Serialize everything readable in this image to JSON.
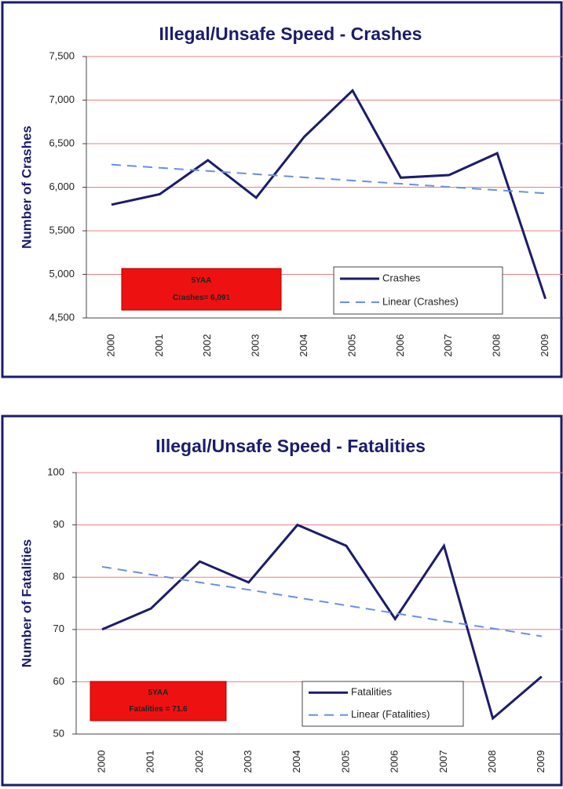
{
  "chart_data": [
    {
      "type": "line",
      "title": "Illegal/Unsafe Speed - Crashes",
      "y_label": "Number of Crashes",
      "categories": [
        "2000",
        "2001",
        "2002",
        "2003",
        "2004",
        "2005",
        "2006",
        "2007",
        "2008",
        "2009"
      ],
      "series": [
        {
          "name": "Crashes",
          "color": "#1c1c6b",
          "style": "solid",
          "values": [
            5800,
            5920,
            6310,
            5880,
            6580,
            7110,
            6110,
            6140,
            6390,
            4720
          ]
        },
        {
          "name": "Linear (Crashes)",
          "color": "#6a8fe0",
          "style": "dashed",
          "values": [
            6260,
            6223,
            6187,
            6150,
            6113,
            6077,
            6040,
            6003,
            5967,
            5930
          ]
        }
      ],
      "ylim": [
        4500,
        7500
      ],
      "yticks": [
        {
          "value": 4500,
          "label": "4,500"
        },
        {
          "value": 5000,
          "label": "5,000"
        },
        {
          "value": 5500,
          "label": "5,500"
        },
        {
          "value": 6000,
          "label": "6,000"
        },
        {
          "value": 6500,
          "label": "6,500"
        },
        {
          "value": 7000,
          "label": "7,000"
        },
        {
          "value": 7500,
          "label": "7,500"
        }
      ],
      "grid": true,
      "annotation": [
        "5YAA",
        "Crashes= 6,091"
      ]
    },
    {
      "type": "line",
      "title": "Illegal/Unsafe Speed - Fatalities",
      "y_label": "Number of Fatalities",
      "categories": [
        "2000",
        "2001",
        "2002",
        "2003",
        "2004",
        "2005",
        "2006",
        "2007",
        "2008",
        "2009"
      ],
      "series": [
        {
          "name": "Fatalities",
          "color": "#1c1c6b",
          "style": "solid",
          "values": [
            70,
            74,
            83,
            79,
            90,
            86,
            72,
            86,
            53,
            61
          ]
        },
        {
          "name": "Linear (Fatalities)",
          "color": "#6a8fe0",
          "style": "dashed",
          "values": [
            82,
            80.5,
            79,
            77.6,
            76.1,
            74.6,
            73.1,
            71.6,
            70.2,
            68.7
          ]
        }
      ],
      "ylim": [
        50,
        100
      ],
      "yticks": [
        50,
        60,
        70,
        80,
        90,
        100
      ],
      "grid": true,
      "annotation": [
        "5YAA",
        "Fatalities = 71.6"
      ]
    }
  ]
}
